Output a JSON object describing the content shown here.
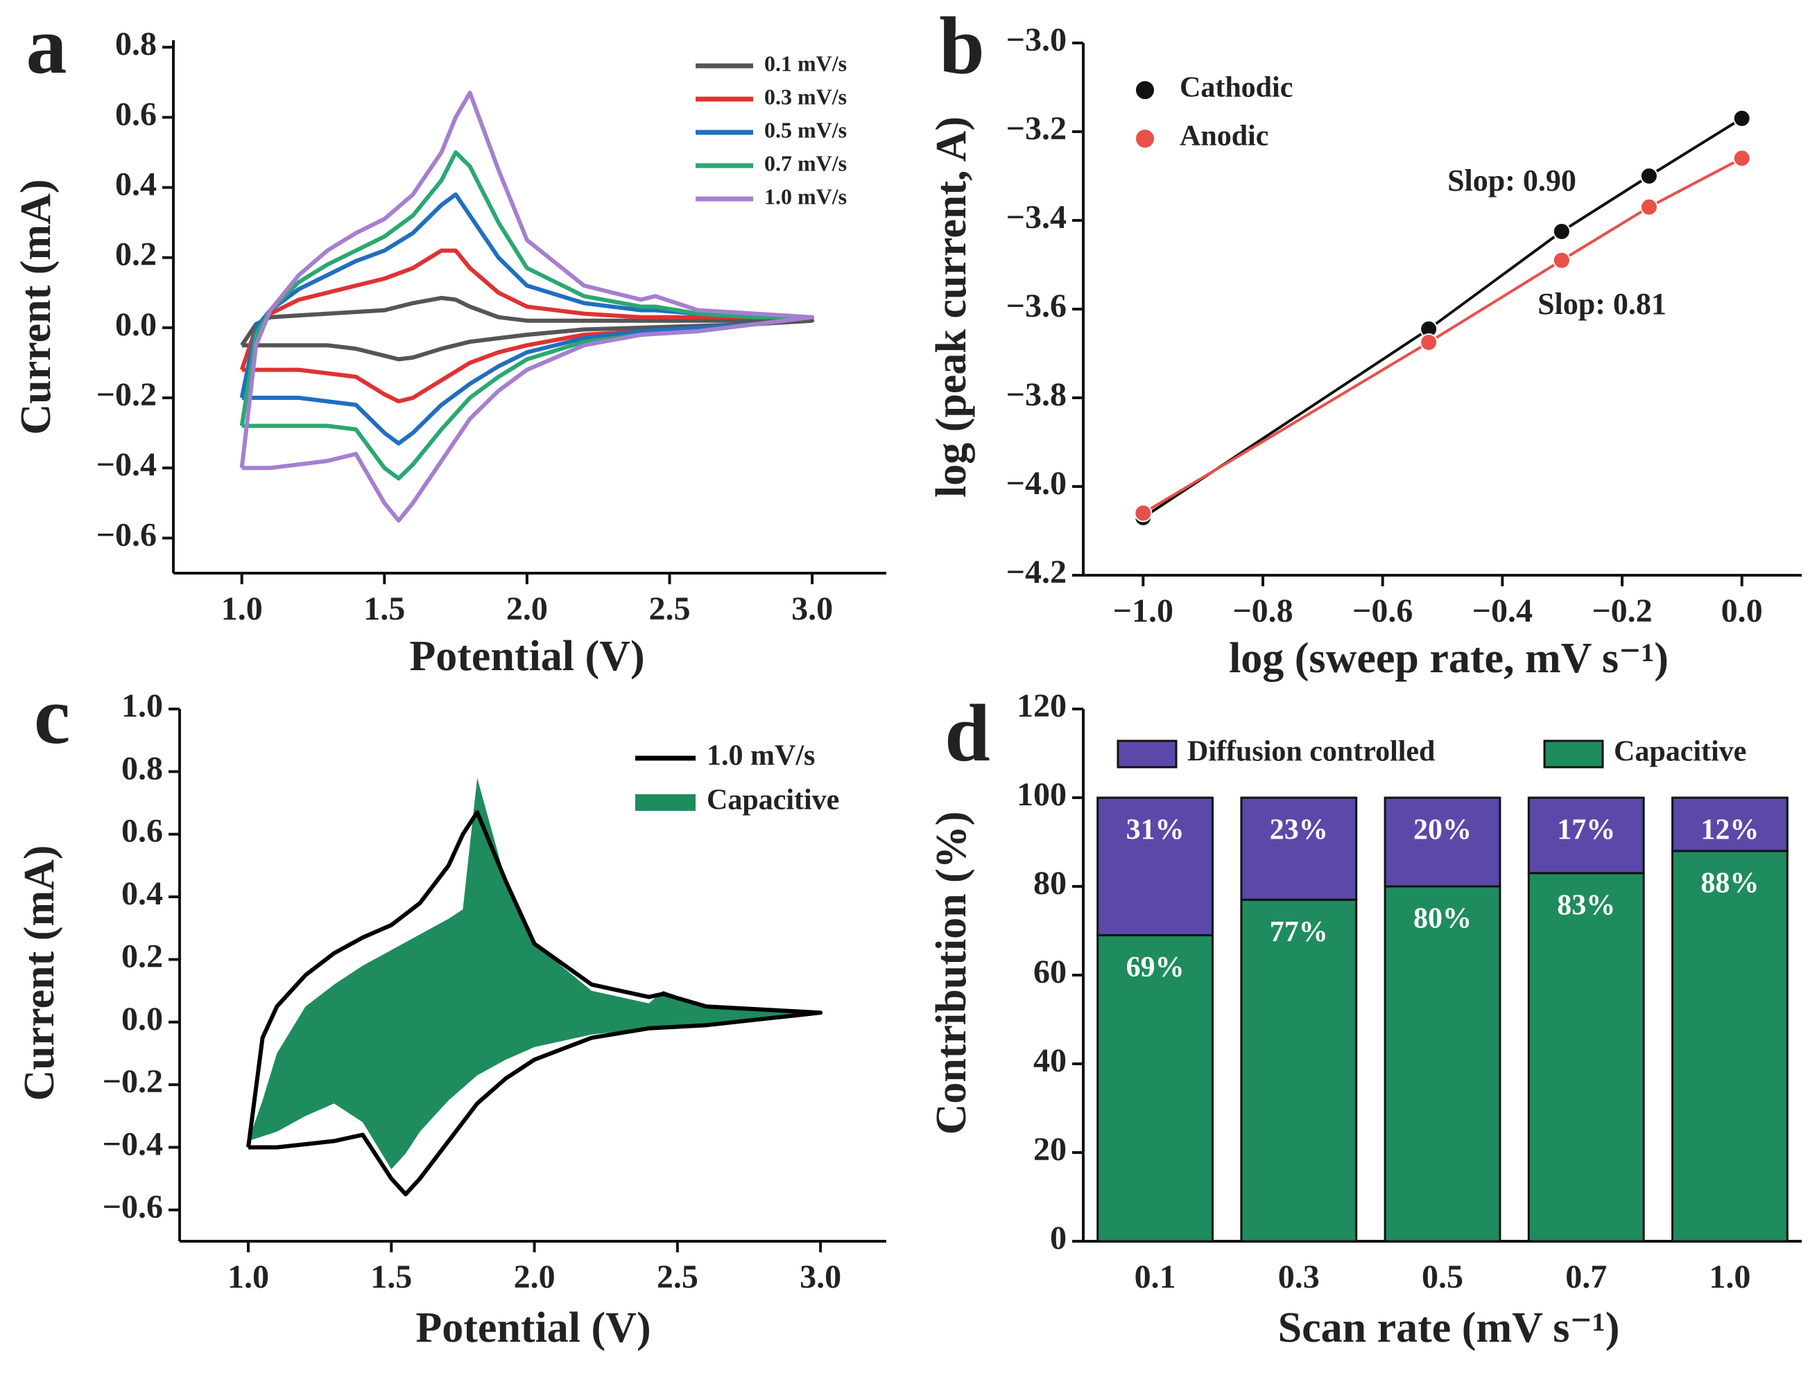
{
  "chart_data": [
    {
      "type": "line",
      "panel": "a",
      "x_label": "Potential (V)",
      "y_label": "Current (mA)",
      "legend": "upper right",
      "x": [
        1,
        1.05,
        1.1,
        1.2,
        1.3,
        1.4,
        1.5,
        1.6,
        1.7,
        1.75,
        1.8,
        1.9,
        2,
        2.2,
        2.4,
        2.45,
        2.6,
        2.8,
        3,
        2.8,
        2.6,
        2.4,
        2.2,
        2,
        1.9,
        1.8,
        1.7,
        1.6,
        1.55,
        1.5,
        1.4,
        1.3,
        1.2,
        1.1,
        1
      ],
      "series": [
        {
          "name": "0.1 mV/s",
          "color": "#555555",
          "values": [
            -0.05,
            0.01,
            0.03,
            0.035,
            0.04,
            0.045,
            0.05,
            0.07,
            0.085,
            0.08,
            0.06,
            0.03,
            0.02,
            0.02,
            0.02,
            0.02,
            0.02,
            0.02,
            0.02,
            0.01,
            0.005,
            0,
            -0.005,
            -0.02,
            -0.03,
            -0.04,
            -0.06,
            -0.085,
            -0.09,
            -0.08,
            -0.06,
            -0.05,
            -0.05,
            -0.05,
            -0.05
          ]
        },
        {
          "name": "0.3 mV/s",
          "color": "#e03232",
          "values": [
            -0.12,
            0,
            0.04,
            0.08,
            0.1,
            0.12,
            0.14,
            0.17,
            0.22,
            0.22,
            0.17,
            0.1,
            0.06,
            0.04,
            0.03,
            0.03,
            0.03,
            0.03,
            0.03,
            0.01,
            0,
            -0.01,
            -0.02,
            -0.05,
            -0.07,
            -0.1,
            -0.15,
            -0.2,
            -0.21,
            -0.19,
            -0.14,
            -0.13,
            -0.12,
            -0.12,
            -0.12
          ]
        },
        {
          "name": "0.5 mV/s",
          "color": "#1f6fc0",
          "values": [
            -0.2,
            0,
            0.05,
            0.11,
            0.15,
            0.19,
            0.22,
            0.27,
            0.35,
            0.38,
            0.32,
            0.2,
            0.12,
            0.07,
            0.05,
            0.05,
            0.04,
            0.03,
            0.03,
            0.01,
            0,
            -0.01,
            -0.03,
            -0.07,
            -0.11,
            -0.16,
            -0.22,
            -0.3,
            -0.33,
            -0.3,
            -0.22,
            -0.21,
            -0.2,
            -0.2,
            -0.2
          ]
        },
        {
          "name": "0.7 mV/s",
          "color": "#2aa870",
          "values": [
            -0.28,
            -0.02,
            0.05,
            0.13,
            0.18,
            0.22,
            0.26,
            0.32,
            0.42,
            0.5,
            0.46,
            0.3,
            0.17,
            0.09,
            0.06,
            0.06,
            0.04,
            0.03,
            0.03,
            0.01,
            -0.01,
            -0.02,
            -0.04,
            -0.09,
            -0.14,
            -0.2,
            -0.29,
            -0.39,
            -0.43,
            -0.4,
            -0.29,
            -0.28,
            -0.28,
            -0.28,
            -0.28
          ]
        },
        {
          "name": "1.0 mV/s",
          "color": "#a57fd0",
          "values": [
            -0.4,
            -0.05,
            0.05,
            0.15,
            0.22,
            0.27,
            0.31,
            0.38,
            0.5,
            0.6,
            0.67,
            0.45,
            0.25,
            0.12,
            0.08,
            0.09,
            0.05,
            0.04,
            0.03,
            0.01,
            -0.01,
            -0.02,
            -0.05,
            -0.12,
            -0.18,
            -0.26,
            -0.38,
            -0.5,
            -0.55,
            -0.5,
            -0.36,
            -0.38,
            -0.39,
            -0.4,
            -0.4
          ]
        }
      ],
      "xlim": [
        0.76,
        3.26
      ],
      "xticks": [
        {
          "value": 1,
          "label": "1.0"
        },
        1.5,
        {
          "value": 2,
          "label": "2.0"
        },
        2.5,
        {
          "value": 3,
          "label": "3.0"
        }
      ],
      "ylim": [
        -0.7,
        0.82
      ],
      "yticks": [
        0.8,
        0.6,
        0.4,
        0.2,
        {
          "value": 0,
          "label": "0.0"
        },
        {
          "value": -0.2,
          "label": "−0.2"
        },
        {
          "value": -0.4,
          "label": "−0.4"
        },
        {
          "value": -0.6,
          "label": "−0.6"
        }
      ]
    },
    {
      "type": "line",
      "panel": "b",
      "markers": true,
      "x_label": "log (sweep rate, mV s⁻¹)",
      "y_label": "log (peak current, A)",
      "legend": "upper left",
      "x": [
        -1,
        -0.523,
        -0.301,
        -0.155,
        0
      ],
      "series": [
        {
          "name": "Cathodic",
          "color": "#111111",
          "values": [
            -4.07,
            -3.645,
            -3.425,
            -3.3,
            -3.17
          ]
        },
        {
          "name": "Anodic",
          "color": "#e8504a",
          "values": [
            -4.06,
            -3.675,
            -3.49,
            -3.37,
            -3.26
          ]
        }
      ],
      "annotations": [
        "Slop: 0.90",
        "Slop: 0.81"
      ],
      "xlim": [
        -1.1,
        0.1
      ],
      "xticks": [
        {
          "value": -1,
          "label": "−1.0"
        },
        {
          "value": -0.8,
          "label": "−0.8"
        },
        {
          "value": -0.6,
          "label": "−0.6"
        },
        {
          "value": -0.4,
          "label": "−0.4"
        },
        {
          "value": -0.2,
          "label": "−0.2"
        },
        {
          "value": 0,
          "label": "0.0"
        }
      ],
      "ylim": [
        -4.2,
        -3
      ],
      "yticks": [
        {
          "value": -3,
          "label": "−3.0"
        },
        {
          "value": -3.2,
          "label": "−3.2"
        },
        {
          "value": -3.4,
          "label": "−3.4"
        },
        {
          "value": -3.6,
          "label": "−3.6"
        },
        {
          "value": -3.8,
          "label": "−3.8"
        },
        {
          "value": -4,
          "label": "−4.0"
        },
        {
          "value": -4.2,
          "label": "−4.2"
        }
      ]
    },
    {
      "type": "line",
      "panel": "c",
      "x_label": "Potential (V)",
      "y_label": "Current (mA)",
      "legend": "upper right",
      "x": [
        1,
        1.05,
        1.1,
        1.2,
        1.3,
        1.4,
        1.5,
        1.6,
        1.7,
        1.75,
        1.8,
        1.9,
        2,
        2.2,
        2.4,
        2.45,
        2.6,
        2.8,
        3,
        2.8,
        2.6,
        2.4,
        2.2,
        2,
        1.9,
        1.8,
        1.7,
        1.6,
        1.55,
        1.5,
        1.4,
        1.3,
        1.2,
        1.1,
        1
      ],
      "series": [
        {
          "name": "1.0 mV/s",
          "color": "#000000",
          "values": [
            -0.4,
            -0.05,
            0.05,
            0.15,
            0.22,
            0.27,
            0.31,
            0.38,
            0.5,
            0.6,
            0.67,
            0.45,
            0.25,
            0.12,
            0.08,
            0.09,
            0.05,
            0.04,
            0.03,
            0.01,
            -0.01,
            -0.02,
            -0.05,
            -0.12,
            -0.18,
            -0.26,
            -0.38,
            -0.5,
            -0.55,
            -0.5,
            -0.36,
            -0.38,
            -0.39,
            -0.4,
            -0.4
          ]
        },
        {
          "name": "Capacitive",
          "color": "#1e8c5e",
          "fill": true,
          "values": [
            -0.38,
            -0.25,
            -0.1,
            0.05,
            0.12,
            0.18,
            0.23,
            0.28,
            0.33,
            0.36,
            0.78,
            0.45,
            0.25,
            0.1,
            0.06,
            0.1,
            0.05,
            0.04,
            0.03,
            0.01,
            -0.01,
            -0.02,
            -0.04,
            -0.08,
            -0.12,
            -0.17,
            -0.25,
            -0.35,
            -0.42,
            -0.47,
            -0.32,
            -0.26,
            -0.3,
            -0.35,
            -0.38
          ]
        }
      ],
      "xlim": [
        0.76,
        3.23
      ],
      "xticks": [
        {
          "value": 1,
          "label": "1.0"
        },
        1.5,
        {
          "value": 2,
          "label": "2.0"
        },
        2.5,
        {
          "value": 3,
          "label": "3.0"
        }
      ],
      "ylim": [
        -0.7,
        1
      ],
      "yticks": [
        {
          "value": 1,
          "label": "1.0"
        },
        0.8,
        0.6,
        0.4,
        0.2,
        {
          "value": 0,
          "label": "0.0"
        },
        {
          "value": -0.2,
          "label": "−0.2"
        },
        {
          "value": -0.4,
          "label": "−0.4"
        },
        {
          "value": -0.6,
          "label": "−0.6"
        }
      ]
    },
    {
      "type": "stacked_bar",
      "panel": "d",
      "x_label": "Scan rate (mV s⁻¹)",
      "y_label": "Contribution (%)",
      "legend": "top",
      "categories": [
        "0.1",
        "0.3",
        "0.5",
        "0.7",
        "1.0"
      ],
      "series": [
        {
          "name": "Diffusion controlled",
          "color": "#5b48a8",
          "values": [
            31,
            23,
            20,
            17,
            12
          ],
          "value_labels": [
            "31%",
            "23%",
            "20%",
            "17%",
            "12%"
          ]
        },
        {
          "name": "Capacitive",
          "color": "#1e8c5e",
          "values": [
            69,
            77,
            80,
            83,
            88
          ],
          "value_labels": [
            "69%",
            "77%",
            "80%",
            "83%",
            "88%"
          ]
        }
      ],
      "ylim": [
        0,
        120
      ],
      "yticks": [
        0,
        20,
        40,
        60,
        80,
        100,
        120
      ]
    }
  ]
}
